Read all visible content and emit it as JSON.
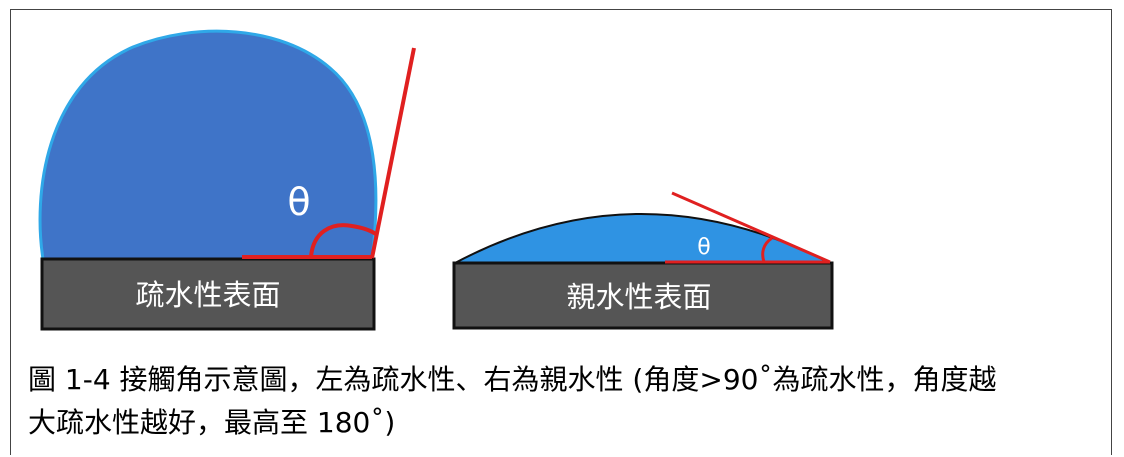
{
  "diagram": {
    "left": {
      "surface_label": "疏水性表面",
      "angle_symbol": "θ"
    },
    "right": {
      "surface_label": "親水性表面",
      "angle_symbol": "θ"
    }
  },
  "caption": {
    "line1": "圖 1-4 接觸角示意圖，左為疏水性、右為親水性 (角度>90˚為疏水性，角度越",
    "line2": "大疏水性越好，最高至 180˚)"
  },
  "colors": {
    "hydrophobic_drop": "#3F74C8",
    "hydrophobic_outline": "#2FA8E8",
    "hydrophilic_drop": "#2F93E3",
    "surface": "#555555",
    "tangent": "#E02020"
  }
}
